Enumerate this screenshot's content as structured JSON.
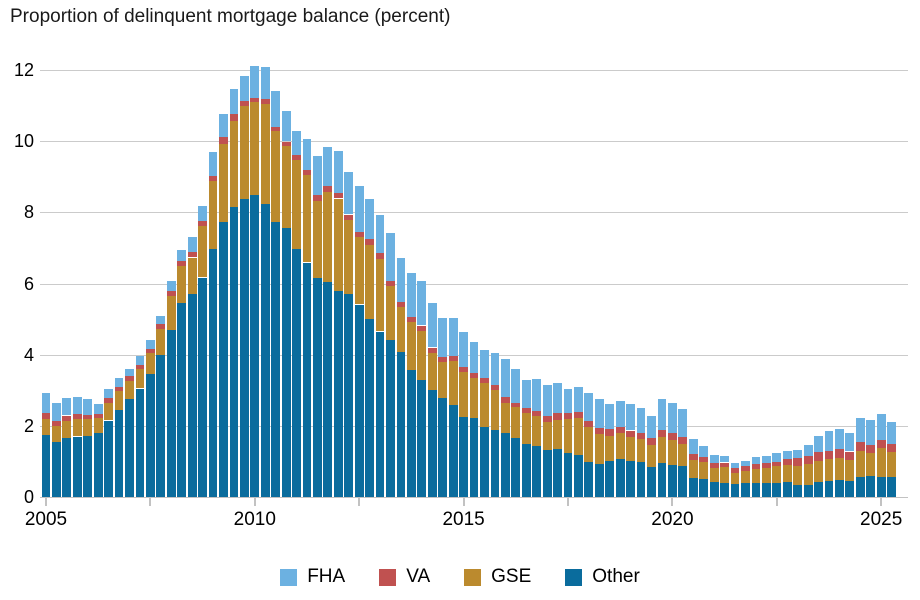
{
  "title": "Proportion of delinquent mortgage balance (percent)",
  "colors": {
    "fha": "#6CB1E1",
    "va": "#C05150",
    "gse": "#BB8A2E",
    "other": "#0A6C9D",
    "grid": "#CBCBCB",
    "axis": "#C2C2C2",
    "text": "#000000"
  },
  "legend": [
    {
      "label": "FHA",
      "color_key": "fha"
    },
    {
      "label": "VA",
      "color_key": "va"
    },
    {
      "label": "GSE",
      "color_key": "gse"
    },
    {
      "label": "Other",
      "color_key": "other"
    }
  ],
  "chart_data": {
    "type": "bar",
    "stacked": true,
    "title": "Proportion of delinquent mortgage balance (percent)",
    "xlabel": "",
    "ylabel": "percent",
    "ylim": [
      0,
      12.2
    ],
    "y_ticks": [
      0,
      2,
      4,
      6,
      8,
      10,
      12
    ],
    "x_tick_years": [
      "2005",
      "2010",
      "2015",
      "2020",
      "2025"
    ],
    "grid": true,
    "legend_position": "bottom",
    "categories": [
      "2005 Q1",
      "2005 Q2",
      "2005 Q3",
      "2005 Q4",
      "2006 Q1",
      "2006 Q2",
      "2006 Q3",
      "2006 Q4",
      "2007 Q1",
      "2007 Q2",
      "2007 Q3",
      "2007 Q4",
      "2008 Q1",
      "2008 Q2",
      "2008 Q3",
      "2008 Q4",
      "2009 Q1",
      "2009 Q2",
      "2009 Q3",
      "2009 Q4",
      "2010 Q1",
      "2010 Q2",
      "2010 Q3",
      "2010 Q4",
      "2011 Q1",
      "2011 Q2",
      "2011 Q3",
      "2011 Q4",
      "2012 Q1",
      "2012 Q2",
      "2012 Q3",
      "2012 Q4",
      "2013 Q1",
      "2013 Q2",
      "2013 Q3",
      "2013 Q4",
      "2014 Q1",
      "2014 Q2",
      "2014 Q3",
      "2014 Q4",
      "2015 Q1",
      "2015 Q2",
      "2015 Q3",
      "2015 Q4",
      "2016 Q1",
      "2016 Q2",
      "2016 Q3",
      "2016 Q4",
      "2017 Q1",
      "2017 Q2",
      "2017 Q3",
      "2017 Q4",
      "2018 Q1",
      "2018 Q2",
      "2018 Q3",
      "2018 Q4",
      "2019 Q1",
      "2019 Q2",
      "2019 Q3",
      "2019 Q4",
      "2020 Q1",
      "2020 Q2",
      "2020 Q3",
      "2020 Q4",
      "2021 Q1",
      "2021 Q2",
      "2021 Q3",
      "2021 Q4",
      "2022 Q1",
      "2022 Q2",
      "2022 Q3",
      "2022 Q4",
      "2023 Q1",
      "2023 Q2",
      "2023 Q3",
      "2023 Q4",
      "2024 Q1",
      "2024 Q2",
      "2024 Q3",
      "2024 Q4",
      "2025 Q1",
      "2025 Q2"
    ],
    "series": [
      {
        "name": "Other",
        "color_key": "other",
        "values": [
          1.75,
          1.55,
          1.66,
          1.7,
          1.72,
          1.8,
          2.15,
          2.45,
          2.75,
          3.05,
          3.45,
          4.0,
          4.7,
          5.45,
          5.7,
          6.17,
          6.96,
          7.72,
          8.14,
          8.37,
          8.48,
          8.23,
          7.72,
          7.55,
          6.96,
          6.59,
          6.15,
          6.05,
          5.8,
          5.7,
          5.41,
          4.99,
          4.65,
          4.42,
          4.08,
          3.58,
          3.3,
          3.01,
          2.79,
          2.59,
          2.25,
          2.22,
          1.97,
          1.89,
          1.8,
          1.65,
          1.5,
          1.44,
          1.32,
          1.35,
          1.24,
          1.18,
          0.99,
          0.93,
          1.01,
          1.07,
          1.0,
          0.98,
          0.84,
          0.95,
          0.9,
          0.87,
          0.54,
          0.51,
          0.43,
          0.4,
          0.37,
          0.39,
          0.39,
          0.39,
          0.4,
          0.43,
          0.34,
          0.35,
          0.43,
          0.45,
          0.48,
          0.45,
          0.57,
          0.6,
          0.55,
          0.57
        ]
      },
      {
        "name": "GSE",
        "color_key": "gse",
        "values": [
          0.45,
          0.45,
          0.49,
          0.48,
          0.46,
          0.42,
          0.5,
          0.52,
          0.52,
          0.55,
          0.6,
          0.72,
          0.95,
          1.03,
          1.03,
          1.44,
          1.91,
          2.2,
          2.42,
          2.62,
          2.62,
          2.81,
          2.56,
          2.31,
          2.5,
          2.45,
          2.16,
          2.51,
          2.59,
          2.1,
          1.89,
          2.08,
          2.03,
          1.5,
          1.25,
          1.35,
          1.38,
          1.04,
          1.0,
          1.24,
          1.27,
          1.13,
          1.24,
          1.12,
          0.85,
          0.88,
          0.85,
          0.84,
          0.78,
          0.82,
          0.96,
          1.04,
          0.98,
          0.85,
          0.71,
          0.73,
          0.7,
          0.65,
          0.62,
          0.74,
          0.71,
          0.62,
          0.5,
          0.48,
          0.38,
          0.44,
          0.31,
          0.35,
          0.4,
          0.42,
          0.46,
          0.48,
          0.54,
          0.57,
          0.58,
          0.62,
          0.62,
          0.59,
          0.73,
          0.64,
          0.83,
          0.7
        ]
      },
      {
        "name": "VA",
        "color_key": "va",
        "values": [
          0.16,
          0.14,
          0.14,
          0.14,
          0.13,
          0.12,
          0.13,
          0.13,
          0.12,
          0.12,
          0.12,
          0.13,
          0.14,
          0.16,
          0.15,
          0.14,
          0.14,
          0.19,
          0.2,
          0.14,
          0.12,
          0.14,
          0.11,
          0.13,
          0.15,
          0.16,
          0.17,
          0.17,
          0.15,
          0.14,
          0.14,
          0.17,
          0.17,
          0.15,
          0.14,
          0.14,
          0.14,
          0.15,
          0.14,
          0.14,
          0.14,
          0.14,
          0.14,
          0.14,
          0.17,
          0.12,
          0.14,
          0.14,
          0.17,
          0.2,
          0.15,
          0.16,
          0.16,
          0.16,
          0.2,
          0.17,
          0.17,
          0.17,
          0.2,
          0.2,
          0.19,
          0.2,
          0.17,
          0.14,
          0.14,
          0.13,
          0.13,
          0.14,
          0.13,
          0.14,
          0.13,
          0.15,
          0.21,
          0.24,
          0.25,
          0.23,
          0.25,
          0.24,
          0.25,
          0.22,
          0.23,
          0.22
        ]
      },
      {
        "name": "FHA",
        "color_key": "fha",
        "values": [
          0.57,
          0.51,
          0.49,
          0.48,
          0.45,
          0.28,
          0.25,
          0.25,
          0.22,
          0.23,
          0.25,
          0.25,
          0.27,
          0.31,
          0.42,
          0.43,
          0.68,
          0.65,
          0.7,
          0.7,
          0.9,
          0.9,
          1.02,
          0.86,
          0.67,
          0.85,
          1.1,
          1.1,
          1.18,
          1.19,
          1.29,
          1.15,
          1.09,
          1.34,
          1.26,
          1.24,
          1.24,
          1.26,
          1.11,
          1.07,
          0.99,
          0.88,
          0.79,
          0.91,
          1.05,
          0.95,
          0.81,
          0.9,
          0.88,
          0.83,
          0.7,
          0.7,
          0.8,
          0.81,
          0.7,
          0.74,
          0.75,
          0.7,
          0.62,
          0.87,
          0.84,
          0.78,
          0.42,
          0.31,
          0.23,
          0.18,
          0.14,
          0.14,
          0.2,
          0.2,
          0.24,
          0.24,
          0.23,
          0.3,
          0.46,
          0.56,
          0.55,
          0.52,
          0.67,
          0.71,
          0.72,
          0.62
        ]
      }
    ]
  }
}
